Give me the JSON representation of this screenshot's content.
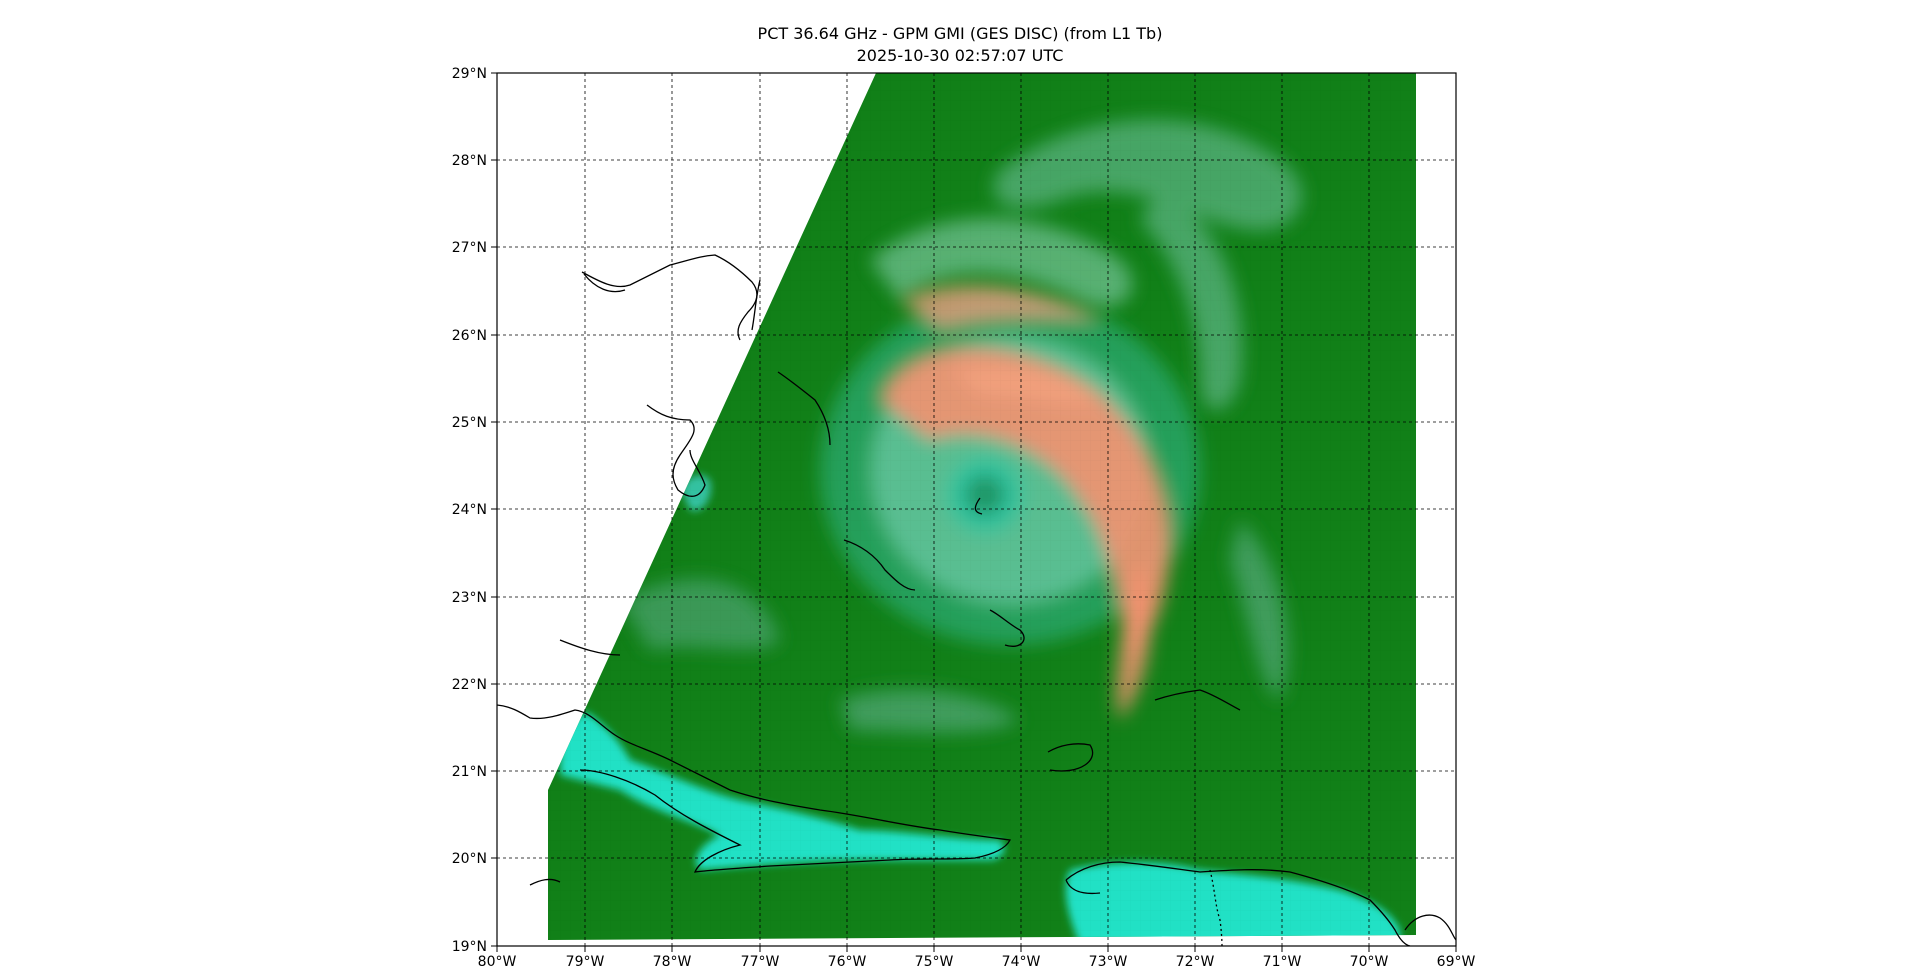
{
  "title": "PCT 36.64 GHz - GPM GMI (GES DISC) (from L1 Tb)",
  "subtitle": "2025-10-30 02:57:07 UTC",
  "map": {
    "lon_range": [
      -80,
      -69
    ],
    "lat_range": [
      19,
      29
    ],
    "grid": "dashed, 1 degree",
    "x_ticks": [
      "80°W",
      "79°W",
      "78°W",
      "77°W",
      "76°W",
      "75°W",
      "74°W",
      "73°W",
      "72°W",
      "71°W",
      "70°W",
      "69°W"
    ],
    "y_ticks": [
      "29°N",
      "28°N",
      "27°N",
      "26°N",
      "25°N",
      "24°N",
      "23°N",
      "22°N",
      "21°N",
      "20°N",
      "19°N"
    ],
    "storm_center": {
      "lon": -74.4,
      "lat": 24.0
    },
    "colors": {
      "background_field": "#0b7d12",
      "warm_land": "#1fe0c4",
      "convection": "#f38f6d",
      "eyewall_mix": "#8ecaa4",
      "coastline": "#000000"
    }
  }
}
